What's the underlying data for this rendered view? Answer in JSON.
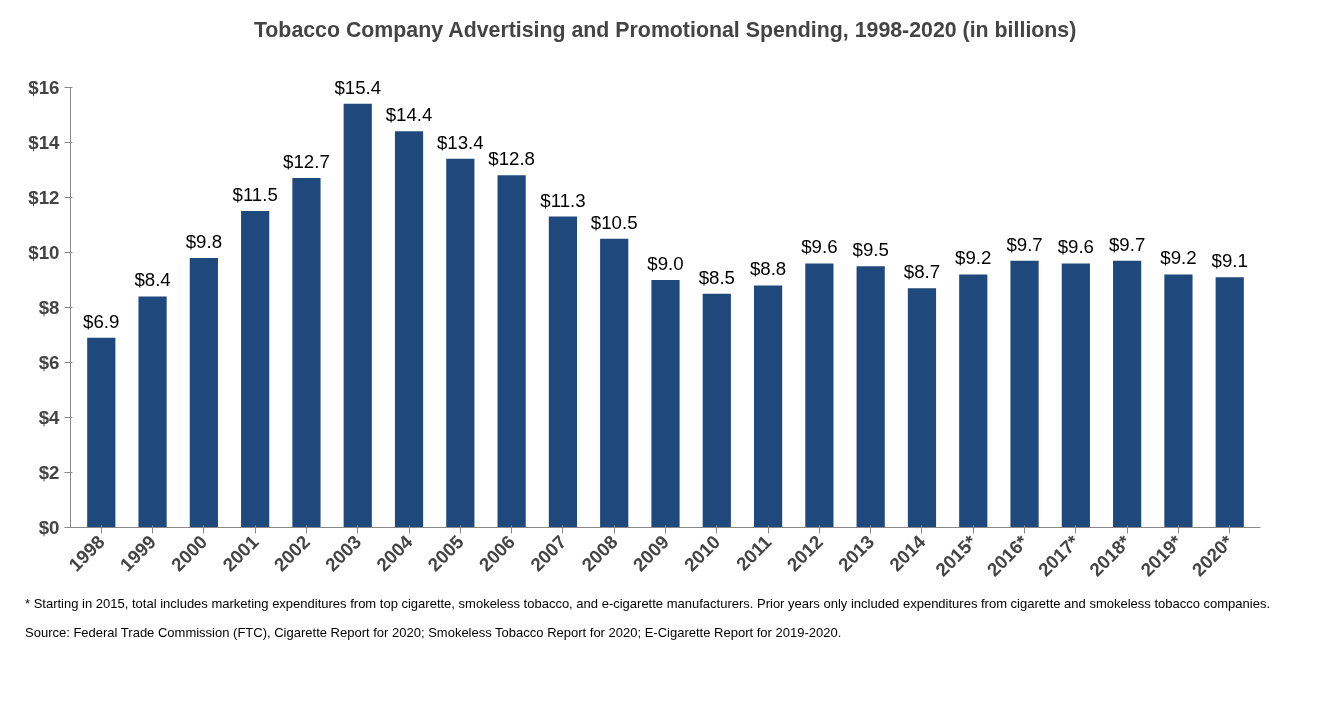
{
  "chart_data": {
    "type": "bar",
    "title": "Tobacco Company Advertising and Promotional Spending, 1998-2020 (in billions)",
    "categories": [
      "1998",
      "1999",
      "2000",
      "2001",
      "2002",
      "2003",
      "2004",
      "2005",
      "2006",
      "2007",
      "2008",
      "2009",
      "2010",
      "2011",
      "2012",
      "2013",
      "2014",
      "2015*",
      "2016*",
      "2017*",
      "2018*",
      "2019*",
      "2020*"
    ],
    "values": [
      6.9,
      8.4,
      9.8,
      11.5,
      12.7,
      15.4,
      14.4,
      13.4,
      12.8,
      11.3,
      10.5,
      9.0,
      8.5,
      8.8,
      9.6,
      9.5,
      8.7,
      9.2,
      9.7,
      9.6,
      9.7,
      9.2,
      9.1
    ],
    "value_labels": [
      "$6.9",
      "$8.4",
      "$9.8",
      "$11.5",
      "$12.7",
      "$15.4",
      "$14.4",
      "$13.4",
      "$12.8",
      "$11.3",
      "$10.5",
      "$9.0",
      "$8.5",
      "$8.8",
      "$9.6",
      "$9.5",
      "$8.7",
      "$9.2",
      "$9.7",
      "$9.6",
      "$9.7",
      "$9.2",
      "$9.1"
    ],
    "color": "#1f497d",
    "ylim": [
      0,
      16
    ],
    "yticks": [
      {
        "value": 0,
        "label": "$0"
      },
      {
        "value": 2,
        "label": "$2"
      },
      {
        "value": 4,
        "label": "$4"
      },
      {
        "value": 6,
        "label": "$6"
      },
      {
        "value": 8,
        "label": "$8"
      },
      {
        "value": 10,
        "label": "$10"
      },
      {
        "value": 12,
        "label": "$12"
      },
      {
        "value": 14,
        "label": "$14"
      },
      {
        "value": 16,
        "label": "$16"
      }
    ],
    "grid": false,
    "annotations": [
      "* Starting in 2015, total includes marketing expenditures from top cigarette, smokeless tobacco, and e-cigarette manufacturers. Prior years only included expenditures from cigarette and smokeless tobacco companies.",
      "Source: Federal Trade Commission (FTC), Cigarette Report for 2020; Smokeless Tobacco Report for 2020; E-Cigarette Report for 2019-2020."
    ]
  }
}
